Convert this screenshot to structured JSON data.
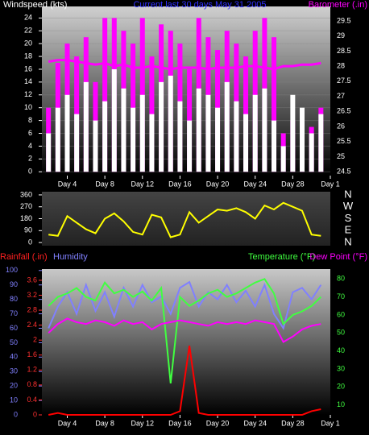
{
  "chart_data": [
    {
      "type": "bar",
      "title": "Current last 30 days May 31 2005",
      "y_label": "Windspeed (kts)",
      "y2_label": "Barometer (.in)",
      "x": [
        2,
        3,
        4,
        5,
        6,
        7,
        8,
        9,
        10,
        11,
        12,
        13,
        14,
        15,
        16,
        17,
        18,
        19,
        20,
        21,
        22,
        23,
        24,
        25,
        26,
        27,
        28,
        29,
        30,
        31
      ],
      "xlim": [
        1.3,
        32
      ],
      "xticks": [
        {
          "value": 4,
          "label": "Day 4"
        },
        {
          "value": 8,
          "label": "Day 8"
        },
        {
          "value": 12,
          "label": "Day 12"
        },
        {
          "value": 16,
          "label": "Day 16"
        },
        {
          "value": 20,
          "label": "Day 20"
        },
        {
          "value": 24,
          "label": "Day 24"
        },
        {
          "value": 28,
          "label": "Day 28"
        },
        {
          "value": 32,
          "label": "Day 1"
        }
      ],
      "ylim": [
        -0.6,
        25.8
      ],
      "yticks": [
        0,
        2,
        4,
        6,
        8,
        10,
        12,
        14,
        16,
        18,
        20,
        22,
        24
      ],
      "y2lim": [
        24.37,
        29.98
      ],
      "y2ticks": [
        24.5,
        25,
        25.5,
        26,
        26.5,
        27,
        27.5,
        28,
        28.5,
        29,
        29.5
      ],
      "grid": true,
      "series": [
        {
          "color": "#ff00ff",
          "values": [
            10,
            17,
            20,
            18,
            21,
            14,
            24,
            24,
            22,
            20,
            24,
            18,
            23,
            22,
            20,
            16,
            24,
            21,
            19,
            22,
            20,
            18,
            22,
            24,
            21,
            6,
            8,
            5,
            7,
            10
          ]
        },
        {
          "color": "#ffffff",
          "values": [
            6,
            10,
            12,
            9,
            14,
            8,
            11,
            16,
            13,
            10,
            12,
            9,
            14,
            15,
            11,
            8,
            13,
            12,
            10,
            14,
            11,
            9,
            12,
            13,
            8,
            4,
            12,
            10,
            6,
            9
          ]
        },
        {
          "color": "#ff00ff",
          "axis": "y2",
          "values": [
            28.15,
            28.2,
            28.2,
            28.15,
            28.1,
            28.05,
            28.1,
            28.0,
            28.05,
            27.95,
            27.95,
            28.0,
            27.95,
            27.9,
            27.95,
            27.95,
            27.95,
            27.9,
            27.95,
            27.95,
            27.95,
            28.0,
            28.0,
            27.95,
            27.9,
            28.0,
            28.0,
            28.05,
            28.05,
            28.1
          ]
        }
      ]
    },
    {
      "type": "line",
      "x": [
        2,
        3,
        4,
        5,
        6,
        7,
        8,
        9,
        10,
        11,
        12,
        13,
        14,
        15,
        16,
        17,
        18,
        19,
        20,
        21,
        22,
        23,
        24,
        25,
        26,
        27,
        28,
        29,
        30,
        31
      ],
      "xlim": [
        1.3,
        32
      ],
      "ylim": [
        -24,
        384
      ],
      "yticks": [
        0,
        90,
        180,
        270,
        360
      ],
      "y2ticks": [
        {
          "value": 360,
          "label": "N"
        },
        {
          "value": 270,
          "label": "W"
        },
        {
          "value": 180,
          "label": "S"
        },
        {
          "value": 90,
          "label": "E"
        },
        {
          "value": 0,
          "label": "N"
        }
      ],
      "series": [
        {
          "color": "#ffff00",
          "values": [
            60,
            50,
            200,
            150,
            100,
            70,
            180,
            220,
            160,
            80,
            60,
            210,
            190,
            40,
            60,
            230,
            150,
            200,
            250,
            240,
            260,
            230,
            180,
            280,
            250,
            300,
            270,
            240,
            60,
            50
          ]
        }
      ]
    },
    {
      "type": "line",
      "y_label": "Humidity",
      "y3_label": "Rainfall (.in)",
      "y2_label": "Temperature (°F)",
      "y2b_label": "Dew Point (°F)",
      "x": [
        2,
        3,
        4,
        5,
        6,
        7,
        8,
        9,
        10,
        11,
        12,
        13,
        14,
        15,
        16,
        17,
        18,
        19,
        20,
        21,
        22,
        23,
        24,
        25,
        26,
        27,
        28,
        29,
        30,
        31
      ],
      "xlim": [
        1.3,
        32
      ],
      "xticks": [
        {
          "value": 4,
          "label": "Day 4"
        },
        {
          "value": 8,
          "label": "Day 8"
        },
        {
          "value": 12,
          "label": "Day 12"
        },
        {
          "value": 16,
          "label": "Day 16"
        },
        {
          "value": 20,
          "label": "Day 20"
        },
        {
          "value": 24,
          "label": "Day 24"
        },
        {
          "value": 28,
          "label": "Day 28"
        },
        {
          "value": 32,
          "label": "Day 1"
        }
      ],
      "ylim": [
        0,
        101
      ],
      "yticks": [
        0,
        10,
        20,
        30,
        40,
        50,
        60,
        70,
        80,
        90,
        100
      ],
      "y3lim": [
        0,
        3.9
      ],
      "y3ticks": [
        0,
        0.4,
        0.8,
        1.2,
        1.6,
        2,
        2.4,
        2.8,
        3.2,
        3.6
      ],
      "y2lim": [
        4.5,
        85.5
      ],
      "y2ticks": [
        10,
        20,
        30,
        40,
        50,
        60,
        70,
        80
      ],
      "series": [
        {
          "color": "#8080ff",
          "values": [
            60,
            75,
            85,
            70,
            90,
            72,
            85,
            68,
            88,
            75,
            90,
            78,
            82,
            70,
            88,
            92,
            75,
            85,
            80,
            90,
            78,
            86,
            75,
            90,
            70,
            60,
            85,
            88,
            80,
            90
          ]
        },
        {
          "color": "#40ff40",
          "axis": "y2",
          "values": [
            65,
            70,
            72,
            75,
            70,
            68,
            78,
            72,
            74,
            70,
            73,
            68,
            75,
            22,
            70,
            65,
            68,
            72,
            74,
            70,
            72,
            75,
            78,
            80,
            72,
            55,
            60,
            62,
            65,
            70
          ]
        },
        {
          "color": "#ff00ff",
          "axis": "y2",
          "values": [
            50,
            55,
            58,
            56,
            55,
            57,
            56,
            54,
            57,
            55,
            56,
            52,
            55,
            56,
            57,
            56,
            55,
            54,
            56,
            55,
            56,
            55,
            57,
            56,
            55,
            45,
            48,
            52,
            54,
            55
          ]
        },
        {
          "color": "#ff0000",
          "axis": "y3",
          "values": [
            0,
            0.05,
            0,
            0,
            0,
            0,
            0,
            0,
            0,
            0,
            0,
            0,
            0,
            0,
            0.1,
            1.85,
            0.05,
            0,
            0,
            0,
            0,
            0,
            0,
            0,
            0,
            0,
            0,
            0,
            0.1,
            0.15
          ]
        }
      ]
    }
  ]
}
